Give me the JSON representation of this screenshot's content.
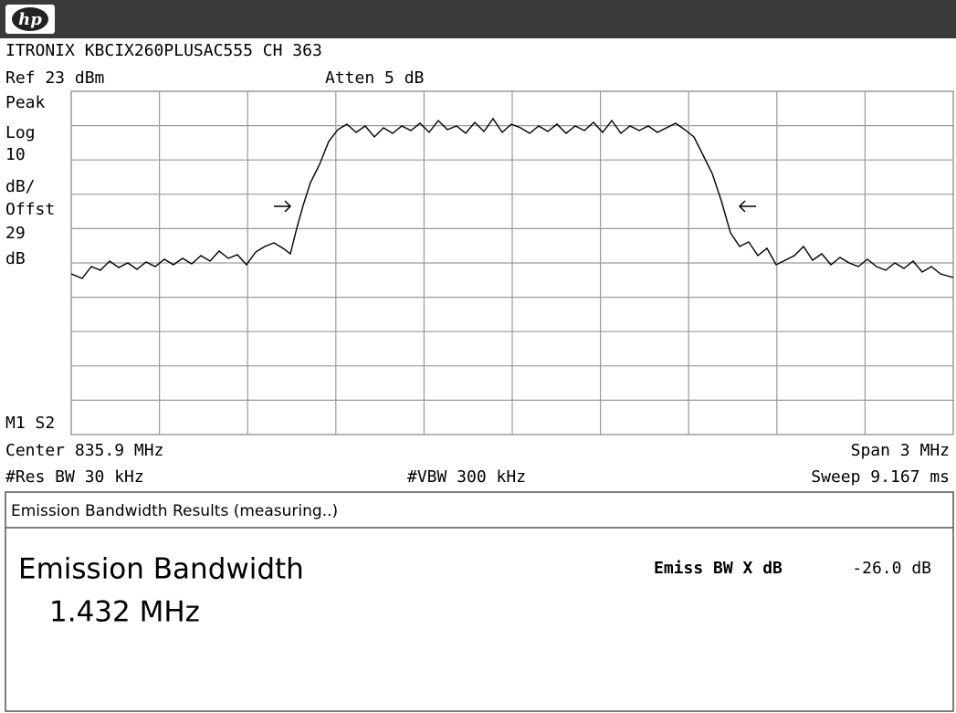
{
  "header": {
    "logo": "hp",
    "title": "ITRONIX KBCIX260PLUSAC555 CH 363",
    "ref": "Ref 23 dBm",
    "atten": "Atten 5 dB"
  },
  "left_labels": [
    "Peak",
    "Log",
    "10",
    "dB/",
    "Offst",
    "29",
    "dB"
  ],
  "marker": "M1 S2",
  "footer": {
    "center": "Center 835.9 MHz",
    "span": "Span 3 MHz",
    "rbw": "#Res BW 30 kHz",
    "vbw": "#VBW 300 kHz",
    "sweep": "Sweep 9.167 ms"
  },
  "results": {
    "header": "Emission Bandwidth Results (measuring..)",
    "label": "Emission Bandwidth",
    "value": "1.432 MHz",
    "param_label": "Emiss BW X dB",
    "param_value": "-26.0 dB"
  }
}
